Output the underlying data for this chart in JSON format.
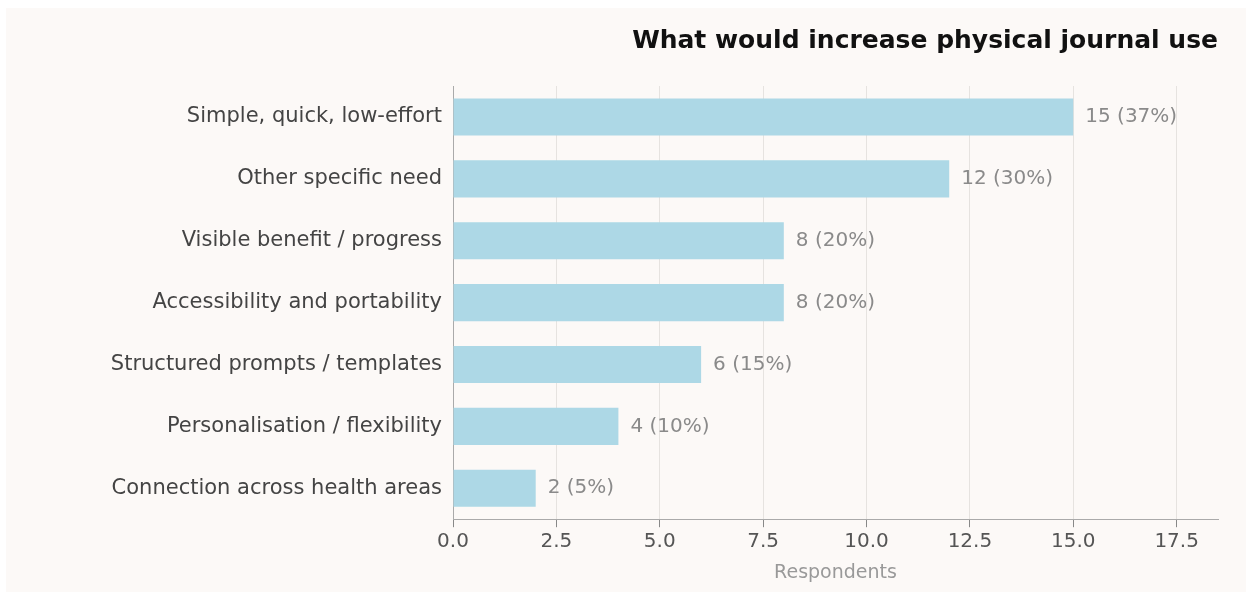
{
  "chart_data": {
    "type": "bar",
    "orientation": "horizontal",
    "title": "What would increase physical journal use",
    "xlabel": "Respondents",
    "categories": [
      "Simple, quick, low-effort",
      "Other specific need",
      "Visible benefit / progress",
      "Accessibility and portability",
      "Structured prompts / templates",
      "Personalisation / flexibility",
      "Connection across health areas"
    ],
    "values": [
      15,
      12,
      8,
      8,
      6,
      4,
      2
    ],
    "value_labels": [
      "15 (37%)",
      "12 (30%)",
      "8 (20%)",
      "8 (20%)",
      "6 (15%)",
      "4 (10%)",
      "2 (5%)"
    ],
    "color": "#add8e6",
    "xlim": [
      0,
      18.5
    ],
    "xticks": [
      {
        "value": 0,
        "label": "0.0"
      },
      {
        "value": 2.5,
        "label": "2.5"
      },
      {
        "value": 5,
        "label": "5.0"
      },
      {
        "value": 7.5,
        "label": "7.5"
      },
      {
        "value": 10,
        "label": "10.0"
      },
      {
        "value": 12.5,
        "label": "12.5"
      },
      {
        "value": 15,
        "label": "15.0"
      },
      {
        "value": 17.5,
        "label": "17.5"
      }
    ],
    "grid": "x",
    "legend": false
  }
}
